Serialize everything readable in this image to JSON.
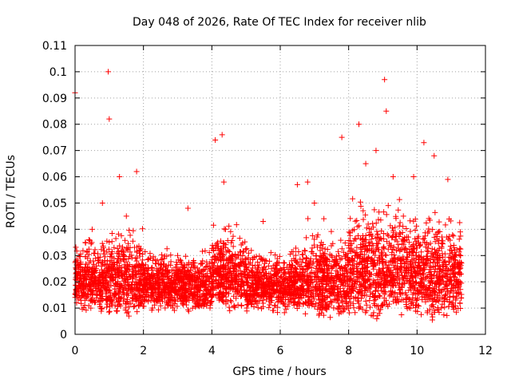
{
  "chart_data": {
    "type": "scatter",
    "title": "Day 048 of 2026, Rate Of TEC Index for receiver nlib",
    "xlabel": "GPS time / hours",
    "ylabel": "ROTI / TECUs",
    "xlim": [
      0,
      12
    ],
    "ylim": [
      0,
      0.11
    ],
    "x_ticks": [
      0,
      2,
      4,
      6,
      8,
      10,
      12
    ],
    "x_tick_labels": [
      "0",
      "2",
      "4",
      "6",
      "8",
      "10",
      "12"
    ],
    "y_ticks": [
      0,
      0.01,
      0.02,
      0.03,
      0.04,
      0.05,
      0.06,
      0.07,
      0.08,
      0.09,
      0.1,
      0.11
    ],
    "y_tick_labels": [
      "0",
      "0.01",
      "0.02",
      "0.03",
      "0.04",
      "0.05",
      "0.06",
      "0.07",
      "0.08",
      "0.09",
      "0.1",
      "0.11"
    ],
    "grid": true,
    "marker": "+",
    "color": "#ff0000",
    "series": [
      {
        "name": "ROTI",
        "x": [
          0.0,
          0.3,
          0.5,
          0.8,
          0.97,
          1.0,
          1.1,
          1.3,
          1.5,
          1.8,
          2.0,
          2.5,
          3.0,
          3.3,
          3.5,
          4.1,
          4.3,
          4.35,
          4.4,
          4.6,
          5.0,
          5.5,
          6.0,
          6.5,
          6.8,
          7.0,
          7.2,
          7.5,
          7.8,
          8.3,
          8.5,
          8.8,
          9.05,
          9.1,
          9.3,
          9.6,
          9.9,
          10.2,
          10.5,
          10.9,
          11.2
        ],
        "y": [
          0.092,
          0.035,
          0.04,
          0.05,
          0.1,
          0.082,
          0.025,
          0.06,
          0.045,
          0.062,
          0.02,
          0.025,
          0.03,
          0.048,
          0.02,
          0.074,
          0.076,
          0.058,
          0.04,
          0.03,
          0.02,
          0.043,
          0.025,
          0.057,
          0.058,
          0.05,
          0.035,
          0.03,
          0.075,
          0.08,
          0.065,
          0.07,
          0.097,
          0.085,
          0.06,
          0.045,
          0.06,
          0.073,
          0.068,
          0.059,
          0.02
        ]
      }
    ],
    "dense_bands": [
      {
        "x_start": 0.0,
        "x_end": 0.9,
        "y_low": 0.008,
        "y_high": 0.04
      },
      {
        "x_start": 0.9,
        "x_end": 2.0,
        "y_low": 0.006,
        "y_high": 0.045
      },
      {
        "x_start": 2.0,
        "x_end": 4.0,
        "y_low": 0.008,
        "y_high": 0.035
      },
      {
        "x_start": 4.0,
        "x_end": 5.0,
        "y_low": 0.008,
        "y_high": 0.045
      },
      {
        "x_start": 5.0,
        "x_end": 6.6,
        "y_low": 0.008,
        "y_high": 0.035
      },
      {
        "x_start": 6.6,
        "x_end": 8.0,
        "y_low": 0.005,
        "y_high": 0.045
      },
      {
        "x_start": 8.0,
        "x_end": 10.0,
        "y_low": 0.005,
        "y_high": 0.055
      },
      {
        "x_start": 10.0,
        "x_end": 11.3,
        "y_low": 0.005,
        "y_high": 0.05
      }
    ]
  }
}
